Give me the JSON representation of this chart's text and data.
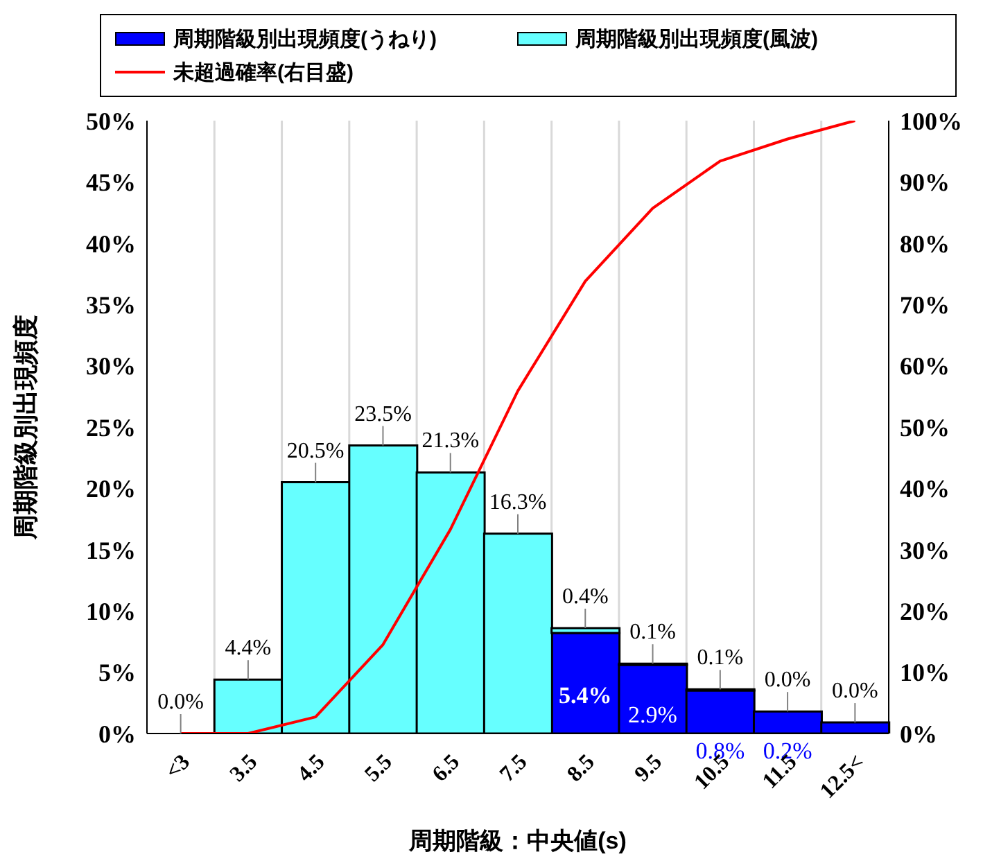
{
  "chart_data": {
    "type": "bar",
    "stacked": true,
    "xlabel": "周期階級：中央値(s)",
    "ylabel": "周期階級別出現頻度",
    "categories": [
      "<3",
      "3.5",
      "4.5",
      "5.5",
      "6.5",
      "7.5",
      "8.5",
      "9.5",
      "10.5",
      "11.5",
      "12.5<"
    ],
    "series": [
      {
        "name": "周期階級別出現頻度(うねり)",
        "color": "#0000ff",
        "values": [
          0,
          0,
          0,
          0,
          0,
          0,
          8.2,
          5.6,
          3.5,
          1.8,
          0.9
        ]
      },
      {
        "name": "周期階級別出現頻度(風波)",
        "color": "#66ffff",
        "values": [
          0.0,
          4.4,
          20.5,
          23.5,
          21.3,
          16.3,
          0.4,
          0.1,
          0.1,
          0.0,
          0.0
        ],
        "value_labels": [
          "0.0%",
          "4.4%",
          "20.5%",
          "23.5%",
          "21.3%",
          "16.3%",
          "0.4%",
          "0.1%",
          "0.1%",
          "0.0%",
          "0.0%"
        ]
      },
      {
        "name": "未超過確率(右目盛)",
        "type": "line",
        "axis": "y2",
        "color": "#ff0000",
        "values": [
          0,
          0,
          2.7,
          14.5,
          33.3,
          55.9,
          73.8,
          85.7,
          93.4,
          97.0,
          100
        ]
      }
    ],
    "ylim": [
      0,
      50
    ],
    "yticks": [
      {
        "value": 0,
        "label": "0%"
      },
      {
        "value": 5,
        "label": "5%"
      },
      {
        "value": 10,
        "label": "10%"
      },
      {
        "value": 15,
        "label": "15%"
      },
      {
        "value": 20,
        "label": "20%"
      },
      {
        "value": 25,
        "label": "25%"
      },
      {
        "value": 30,
        "label": "30%"
      },
      {
        "value": 35,
        "label": "35%"
      },
      {
        "value": 40,
        "label": "40%"
      },
      {
        "value": 45,
        "label": "45%"
      },
      {
        "value": 50,
        "label": "50%"
      }
    ],
    "y2lim": [
      0,
      100
    ],
    "y2ticks": [
      {
        "value": 0,
        "label": "0%"
      },
      {
        "value": 10,
        "label": "10%"
      },
      {
        "value": 20,
        "label": "20%"
      },
      {
        "value": 30,
        "label": "30%"
      },
      {
        "value": 40,
        "label": "40%"
      },
      {
        "value": 50,
        "label": "50%"
      },
      {
        "value": 60,
        "label": "60%"
      },
      {
        "value": 70,
        "label": "70%"
      },
      {
        "value": 80,
        "label": "80%"
      },
      {
        "value": 90,
        "label": "90%"
      },
      {
        "value": 100,
        "label": "100%"
      }
    ],
    "annotations": [
      "5.4%",
      "2.9%",
      "0.8%",
      "0.2%"
    ],
    "grid": true,
    "legend": "top"
  }
}
